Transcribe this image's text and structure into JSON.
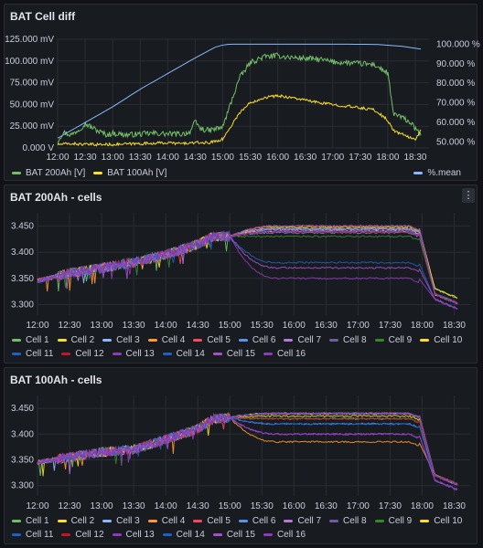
{
  "panels": [
    {
      "title": "BAT Cell diff"
    },
    {
      "title": "BAT 200Ah - cells",
      "menu_icon": "vertical-ellipsis-icon",
      "menu_glyph": "⋮"
    },
    {
      "title": "BAT 100Ah - cells"
    }
  ],
  "cell_colors": [
    "#73bf69",
    "#fade2a",
    "#8ab8ff",
    "#ff9830",
    "#f2495c",
    "#5794f2",
    "#b877d9",
    "#705da0",
    "#37872d",
    "#fade2a",
    "#1f60c4",
    "#c4162a",
    "#8f3bb8",
    "#1f60c4",
    "#a352cc",
    "#8f3bb8"
  ],
  "chart_data": [
    {
      "type": "line",
      "title": "BAT Cell diff",
      "x_ticks": [
        "12:00",
        "12:30",
        "13:00",
        "13:30",
        "14:00",
        "14:30",
        "15:00",
        "15:30",
        "16:00",
        "16:30",
        "17:00",
        "17:30",
        "18:00",
        "18:30"
      ],
      "y_left_ticks": [
        "0.000 V",
        "25.000 mV",
        "50.000 mV",
        "75.000 mV",
        "100.000 mV",
        "125.000 mV"
      ],
      "y_left_range_mV": [
        0,
        125
      ],
      "y_right_ticks": [
        "50.000 %",
        "60.000 %",
        "70.000 %",
        "80.000 %",
        "90.000 %",
        "100.000 %"
      ],
      "y_right_range_pct": [
        47,
        102.5
      ],
      "series": [
        {
          "name": "BAT 200Ah [V]",
          "axis": "left",
          "color": "#73bf69",
          "points": [
            [
              0,
              8
            ],
            [
              0.1,
              18
            ],
            [
              0.25,
              15
            ],
            [
              0.4,
              22
            ],
            [
              0.5,
              28
            ],
            [
              0.75,
              19
            ],
            [
              0.9,
              15
            ],
            [
              1.0,
              17
            ],
            [
              1.25,
              15
            ],
            [
              1.5,
              16
            ],
            [
              1.75,
              17
            ],
            [
              2.0,
              16
            ],
            [
              2.25,
              16
            ],
            [
              2.4,
              18
            ],
            [
              2.5,
              30
            ],
            [
              2.6,
              22
            ],
            [
              2.75,
              20
            ],
            [
              3.0,
              24
            ],
            [
              3.3,
              80
            ],
            [
              3.5,
              98
            ],
            [
              3.75,
              105
            ],
            [
              4.0,
              106
            ],
            [
              4.25,
              104
            ],
            [
              4.5,
              103
            ],
            [
              4.75,
              102
            ],
            [
              5.0,
              99
            ],
            [
              5.25,
              98
            ],
            [
              5.5,
              97
            ],
            [
              5.75,
              96
            ],
            [
              6.0,
              86
            ],
            [
              6.1,
              40
            ],
            [
              6.25,
              35
            ],
            [
              6.4,
              30
            ],
            [
              6.5,
              22
            ],
            [
              6.6,
              15
            ]
          ]
        },
        {
          "name": "BAT 100Ah [V]",
          "axis": "left",
          "color": "#fade2a",
          "points": [
            [
              0,
              4
            ],
            [
              0.25,
              5
            ],
            [
              0.5,
              4
            ],
            [
              1.0,
              4
            ],
            [
              1.5,
              5
            ],
            [
              2.0,
              6
            ],
            [
              2.25,
              5
            ],
            [
              2.5,
              6
            ],
            [
              2.75,
              6
            ],
            [
              3.0,
              10
            ],
            [
              3.3,
              40
            ],
            [
              3.5,
              52
            ],
            [
              3.75,
              58
            ],
            [
              4.0,
              60
            ],
            [
              4.25,
              58
            ],
            [
              4.5,
              55
            ],
            [
              4.75,
              52
            ],
            [
              5.0,
              50
            ],
            [
              5.25,
              48
            ],
            [
              5.5,
              46
            ],
            [
              5.75,
              44
            ],
            [
              6.0,
              32
            ],
            [
              6.1,
              20
            ],
            [
              6.25,
              16
            ],
            [
              6.4,
              12
            ],
            [
              6.5,
              10
            ],
            [
              6.6,
              20
            ]
          ]
        },
        {
          "name": "%.mean",
          "axis": "right",
          "color": "#8ab8ff",
          "points": [
            [
              0,
              52
            ],
            [
              0.5,
              60
            ],
            [
              1.0,
              68
            ],
            [
              1.5,
              77
            ],
            [
              2.0,
              85
            ],
            [
              2.5,
              93
            ],
            [
              2.9,
              99
            ],
            [
              3.1,
              100
            ],
            [
              4.0,
              100
            ],
            [
              5.0,
              100
            ],
            [
              5.75,
              99.9
            ],
            [
              6.0,
              99.5
            ],
            [
              6.3,
              98.8
            ],
            [
              6.6,
              97.5
            ]
          ]
        }
      ]
    },
    {
      "type": "line",
      "title": "BAT 200Ah - cells",
      "x_ticks": [
        "12:00",
        "12:30",
        "13:00",
        "13:30",
        "14:00",
        "14:30",
        "15:00",
        "15:30",
        "16:00",
        "16:30",
        "17:00",
        "17:30",
        "18:00",
        "18:30"
      ],
      "y_ticks": [
        "3.300",
        "3.350",
        "3.400",
        "3.450"
      ],
      "y_range": [
        3.28,
        3.475
      ],
      "series_names": [
        "Cell 1",
        "Cell 2",
        "Cell 3",
        "Cell 4",
        "Cell 5",
        "Cell 6",
        "Cell 7",
        "Cell 8",
        "Cell 9",
        "Cell 10",
        "Cell 11",
        "Cell 12",
        "Cell 13",
        "Cell 14",
        "Cell 15",
        "Cell 16"
      ],
      "base_curve": [
        [
          0,
          3.345
        ],
        [
          0.5,
          3.36
        ],
        [
          1.0,
          3.37
        ],
        [
          1.5,
          3.38
        ],
        [
          2.0,
          3.395
        ],
        [
          2.5,
          3.415
        ],
        [
          2.75,
          3.43
        ],
        [
          3.0,
          3.43
        ]
      ],
      "plateau_values": [
        3.445,
        3.448,
        3.443,
        3.44,
        3.45,
        3.437,
        3.445,
        3.45,
        3.43,
        3.44,
        3.44,
        3.438,
        3.44,
        3.38,
        3.37,
        3.35
      ],
      "end_values": [
        3.31,
        3.31,
        3.3,
        3.3,
        3.3,
        3.3,
        3.3,
        3.3,
        3.3,
        3.3,
        3.3,
        3.3,
        3.3,
        3.29,
        3.29,
        3.29
      ]
    },
    {
      "type": "line",
      "title": "BAT 100Ah - cells",
      "x_ticks": [
        "12:00",
        "12:30",
        "13:00",
        "13:30",
        "14:00",
        "14:30",
        "15:00",
        "15:30",
        "16:00",
        "16:30",
        "17:00",
        "17:30",
        "18:00",
        "18:30"
      ],
      "y_ticks": [
        "3.300",
        "3.350",
        "3.400",
        "3.450"
      ],
      "y_range": [
        3.28,
        3.475
      ],
      "series_names": [
        "Cell 1",
        "Cell 2",
        "Cell 3",
        "Cell 4",
        "Cell 5",
        "Cell 6",
        "Cell 7",
        "Cell 8",
        "Cell 9",
        "Cell 10",
        "Cell 11",
        "Cell 12",
        "Cell 13",
        "Cell 14",
        "Cell 15",
        "Cell 16"
      ],
      "base_curve": [
        [
          0,
          3.345
        ],
        [
          0.5,
          3.355
        ],
        [
          1.0,
          3.365
        ],
        [
          1.5,
          3.37
        ],
        [
          2.0,
          3.39
        ],
        [
          2.5,
          3.41
        ],
        [
          2.75,
          3.43
        ],
        [
          3.0,
          3.432
        ]
      ],
      "plateau_values": [
        3.43,
        3.435,
        3.44,
        3.385,
        3.44,
        3.42,
        3.44,
        3.44,
        3.43,
        3.44,
        3.44,
        3.43,
        3.44,
        3.42,
        3.4,
        3.4
      ],
      "end_values": [
        3.3,
        3.3,
        3.3,
        3.3,
        3.3,
        3.3,
        3.3,
        3.3,
        3.3,
        3.3,
        3.3,
        3.3,
        3.3,
        3.29,
        3.29,
        3.29
      ]
    }
  ]
}
